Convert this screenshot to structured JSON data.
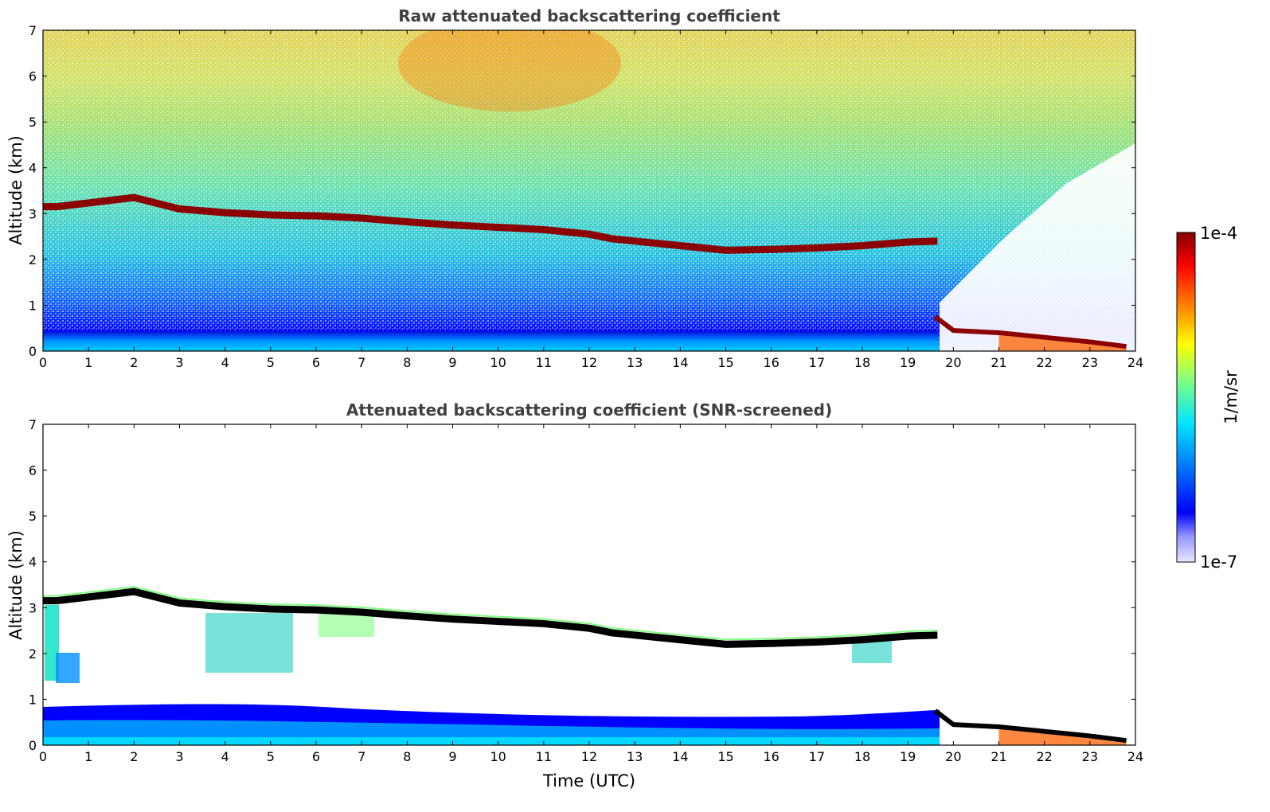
{
  "colors": {
    "jet": [
      "#00008f",
      "#0000ff",
      "#0080ff",
      "#00ffff",
      "#80ff80",
      "#ffff00",
      "#ff8000",
      "#ff0000",
      "#800000"
    ],
    "cloud_raw": "#8b0000",
    "cloud_screened": "#000000",
    "frame": "#000000",
    "title": "#404040"
  },
  "chart_data": [
    {
      "type": "heatmap",
      "title": "Raw attenuated backscattering coefficient",
      "xlabel": "",
      "ylabel": "Altitude (km)",
      "xlim": [
        0,
        24
      ],
      "ylim": [
        0,
        7
      ],
      "xticks": [
        "0",
        "1",
        "2",
        "3",
        "4",
        "5",
        "6",
        "7",
        "8",
        "9",
        "10",
        "11",
        "12",
        "13",
        "14",
        "15",
        "16",
        "17",
        "18",
        "19",
        "20",
        "21",
        "22",
        "23",
        "24"
      ],
      "yticks": [
        "0",
        "1",
        "2",
        "3",
        "4",
        "5",
        "6",
        "7"
      ],
      "cloud_layer_top_km": {
        "t": [
          0,
          0.3,
          2.0,
          3,
          4,
          5,
          6,
          7,
          8,
          9,
          10,
          11,
          12,
          12.5,
          13,
          14,
          15,
          16,
          17,
          18,
          19,
          19.65
        ],
        "alt": [
          3.15,
          3.15,
          3.35,
          3.1,
          3.02,
          2.97,
          2.95,
          2.9,
          2.82,
          2.75,
          2.7,
          2.65,
          2.55,
          2.45,
          2.4,
          2.3,
          2.2,
          2.22,
          2.25,
          2.3,
          2.38,
          2.4
        ]
      },
      "low_cloud_km": {
        "t": [
          19.6,
          20,
          21,
          22,
          23,
          23.8
        ],
        "alt": [
          0.75,
          0.45,
          0.4,
          0.3,
          0.2,
          0.1
        ]
      }
    },
    {
      "type": "heatmap",
      "title": "Attenuated backscattering coefficient (SNR-screened)",
      "xlabel": "Time (UTC)",
      "ylabel": "Altitude (km)",
      "xlim": [
        0,
        24
      ],
      "ylim": [
        0,
        7
      ],
      "xticks": [
        "0",
        "1",
        "2",
        "3",
        "4",
        "5",
        "6",
        "7",
        "8",
        "9",
        "10",
        "11",
        "12",
        "13",
        "14",
        "15",
        "16",
        "17",
        "18",
        "19",
        "20",
        "21",
        "22",
        "23",
        "24"
      ],
      "yticks": [
        "0",
        "1",
        "2",
        "3",
        "4",
        "5",
        "6",
        "7"
      ]
    }
  ],
  "colorbar": {
    "label": "1/m/sr",
    "max_label": "1e-4",
    "min_label": "1e-7"
  }
}
